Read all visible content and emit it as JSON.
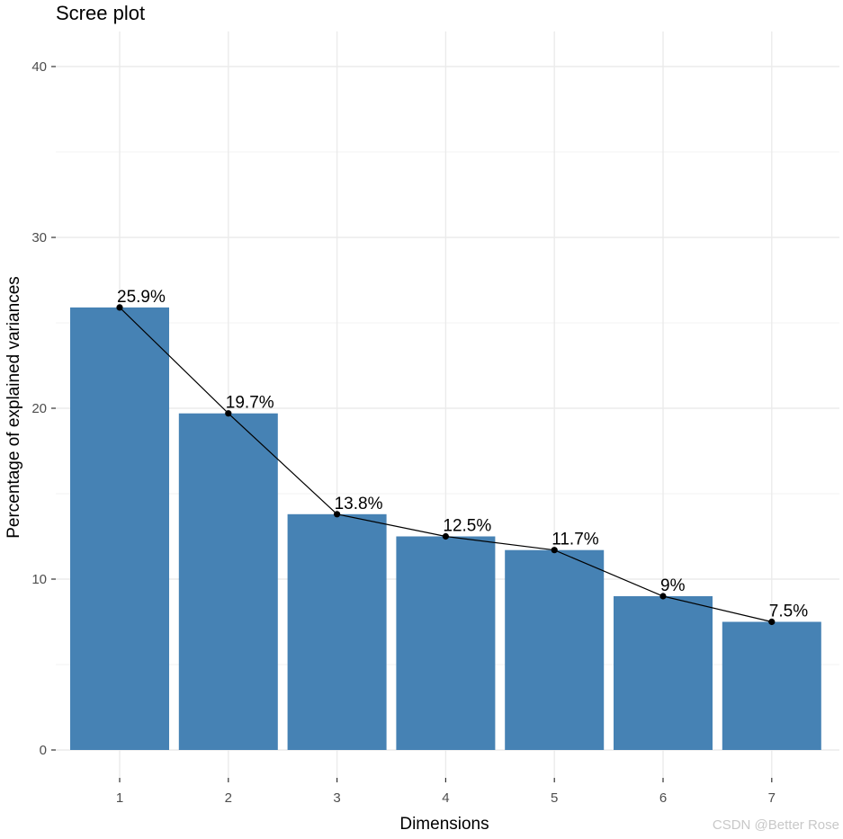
{
  "chart_data": {
    "type": "bar",
    "title": "Scree plot",
    "xlabel": "Dimensions",
    "ylabel": "Percentage of explained variances",
    "categories": [
      "1",
      "2",
      "3",
      "4",
      "5",
      "6",
      "7"
    ],
    "values": [
      25.9,
      19.7,
      13.8,
      12.5,
      11.7,
      9.0,
      7.5
    ],
    "data_labels": [
      "25.9%",
      "19.7%",
      "13.8%",
      "12.5%",
      "11.7%",
      "9%",
      "7.5%"
    ],
    "ylim": [
      0,
      41.5
    ],
    "yticks": [
      0,
      10,
      20,
      30,
      40
    ],
    "ytick_labels": [
      "0",
      "10",
      "20",
      "30",
      "40"
    ],
    "overlay_line": true,
    "grid": true,
    "legend": "none",
    "colors": {
      "bar": "#4682B4",
      "line": "#000000",
      "point": "#000000"
    }
  },
  "watermark": "CSDN @Better Rose"
}
